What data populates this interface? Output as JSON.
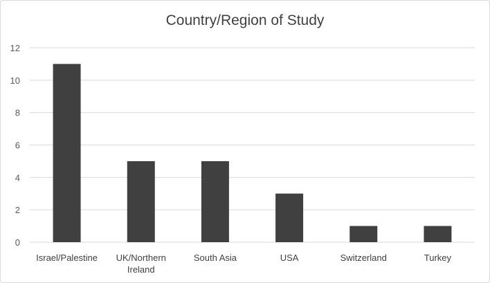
{
  "chart_data": {
    "type": "bar",
    "title": "Country/Region of Study",
    "categories": [
      [
        "Israel/Palestine"
      ],
      [
        "UK/Northern",
        "Ireland"
      ],
      [
        "South Asia"
      ],
      [
        "USA"
      ],
      [
        "Switzerland"
      ],
      [
        "Turkey"
      ]
    ],
    "values": [
      11,
      5,
      5,
      3,
      1,
      1
    ],
    "ylim": [
      0,
      12
    ],
    "yticks": [
      "0",
      "2",
      "4",
      "6",
      "8",
      "10",
      "12"
    ],
    "grid": true,
    "bar_color": "#404040",
    "grid_color": "#d9d9d9"
  }
}
